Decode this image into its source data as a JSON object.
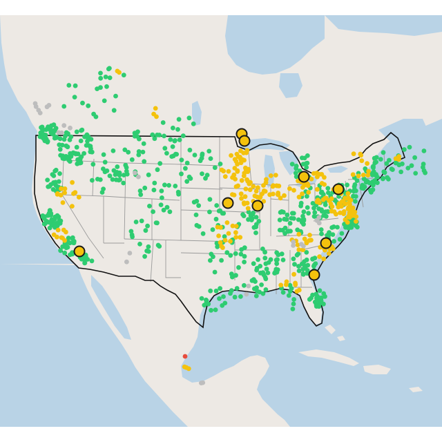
{
  "map": {
    "colors": {
      "ocean": "#b9d3e6",
      "land": "#ede9e4",
      "us_border": "#111111",
      "state_lines": "#9a9a9a",
      "green": "#2ecc71",
      "yellow": "#f4c20d",
      "gray": "#bdbdbd",
      "red": "#e74c3c",
      "large_fill": "#f4c20d",
      "large_stroke": "#1a1a1a"
    },
    "legend": []
  }
}
